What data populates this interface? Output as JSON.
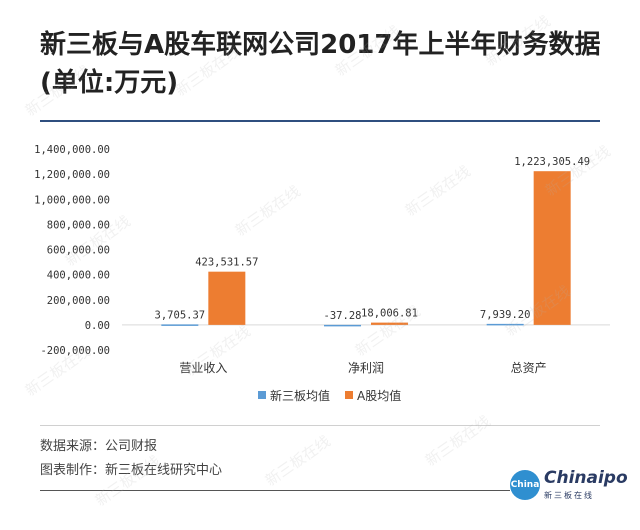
{
  "title_line1": "新三板与A股车联网公司2017年上半年财务数据",
  "title_line2": "(单位:万元)",
  "chart_data": {
    "type": "bar",
    "categories": [
      "营业收入",
      "净利润",
      "总资产"
    ],
    "series": [
      {
        "name": "新三板均值",
        "values": [
          3705.37,
          -37.28,
          7939.2
        ],
        "labels": [
          "3,705.37",
          "-37.28",
          "7,939.20"
        ],
        "color": "#5b9bd5"
      },
      {
        "name": "A股均值",
        "values": [
          423531.57,
          18006.81,
          1223305.49
        ],
        "labels": [
          "423,531.57",
          "18,006.81",
          "1,223,305.49"
        ],
        "color": "#ed7d31"
      }
    ],
    "ylim": [
      -200000,
      1400000
    ],
    "yticks": [
      -200000,
      0,
      200000,
      400000,
      600000,
      800000,
      1000000,
      1200000,
      1400000
    ],
    "ytick_labels": [
      "-200,000.00",
      "0.00",
      "200,000.00",
      "400,000.00",
      "600,000.00",
      "800,000.00",
      "1,000,000.00",
      "1,200,000.00",
      "1,400,000.00"
    ],
    "grid": false,
    "legend": "bottom"
  },
  "footer": {
    "source": "数据来源：公司财报",
    "author": "图表制作：新三板在线研究中心"
  },
  "logo": {
    "badge": "China ipo",
    "word": "Chinaipo",
    "sub": "新三板在线"
  },
  "watermark": "新三板在线"
}
